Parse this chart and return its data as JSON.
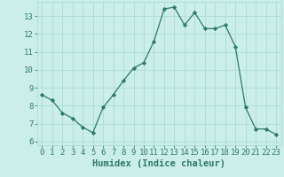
{
  "x": [
    0,
    1,
    2,
    3,
    4,
    5,
    6,
    7,
    8,
    9,
    10,
    11,
    12,
    13,
    14,
    15,
    16,
    17,
    18,
    19,
    20,
    21,
    22,
    23
  ],
  "y": [
    8.6,
    8.3,
    7.6,
    7.3,
    6.8,
    6.5,
    7.9,
    8.6,
    9.4,
    10.1,
    10.4,
    11.6,
    13.4,
    13.5,
    12.5,
    13.2,
    12.3,
    12.3,
    12.5,
    11.3,
    7.9,
    6.7,
    6.7,
    6.4
  ],
  "line_color": "#2d7a6a",
  "marker": "D",
  "marker_size": 2.2,
  "bg_color": "#cceee8",
  "grid_color": "#aaddd6",
  "xlabel": "Humidex (Indice chaleur)",
  "xlabel_fontsize": 7.5,
  "xlabel_color": "#2d7a6a",
  "tick_color": "#2d7a6a",
  "ylim": [
    5.8,
    13.8
  ],
  "xlim": [
    -0.5,
    23.5
  ],
  "yticks": [
    6,
    7,
    8,
    9,
    10,
    11,
    12,
    13
  ],
  "xticks": [
    0,
    1,
    2,
    3,
    4,
    5,
    6,
    7,
    8,
    9,
    10,
    11,
    12,
    13,
    14,
    15,
    16,
    17,
    18,
    19,
    20,
    21,
    22,
    23
  ],
  "tick_fontsize": 6.5
}
